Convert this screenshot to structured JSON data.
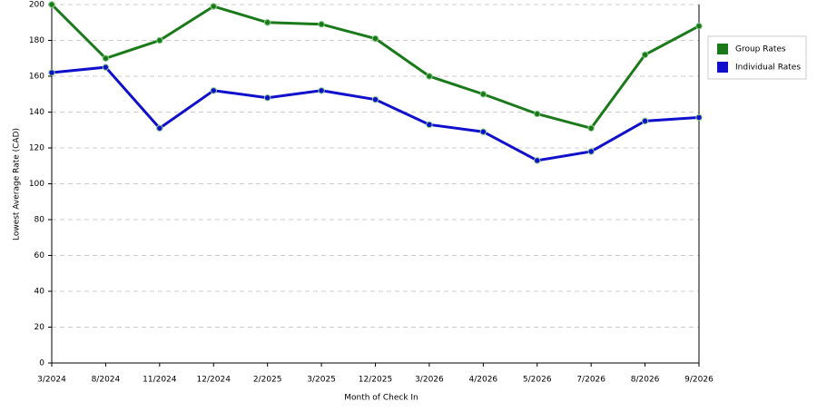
{
  "chart_data": {
    "type": "line",
    "x_label": "Month of Check In",
    "y_label": "Lowest Average Rate (CAD)",
    "categories": [
      "3/2024",
      "8/2024",
      "11/2024",
      "12/2024",
      "2/2025",
      "3/2025",
      "12/2025",
      "3/2026",
      "4/2026",
      "5/2026",
      "7/2026",
      "8/2026",
      "9/2026"
    ],
    "series": [
      {
        "name": "Group Rates",
        "color": "#1a7a1a",
        "values": [
          200,
          170,
          180,
          199,
          190,
          189,
          181,
          160,
          150,
          139,
          131,
          172,
          188
        ]
      },
      {
        "name": "Individual Rates",
        "color": "#1010cc",
        "values": [
          162,
          165,
          131,
          152,
          148,
          152,
          147,
          133,
          129,
          113,
          118,
          135,
          137
        ]
      }
    ],
    "ylim": [
      0,
      200
    ],
    "yticks": [
      0,
      20,
      40,
      60,
      80,
      100,
      120,
      140,
      160,
      180,
      200
    ],
    "grid": true,
    "legend": "right"
  }
}
